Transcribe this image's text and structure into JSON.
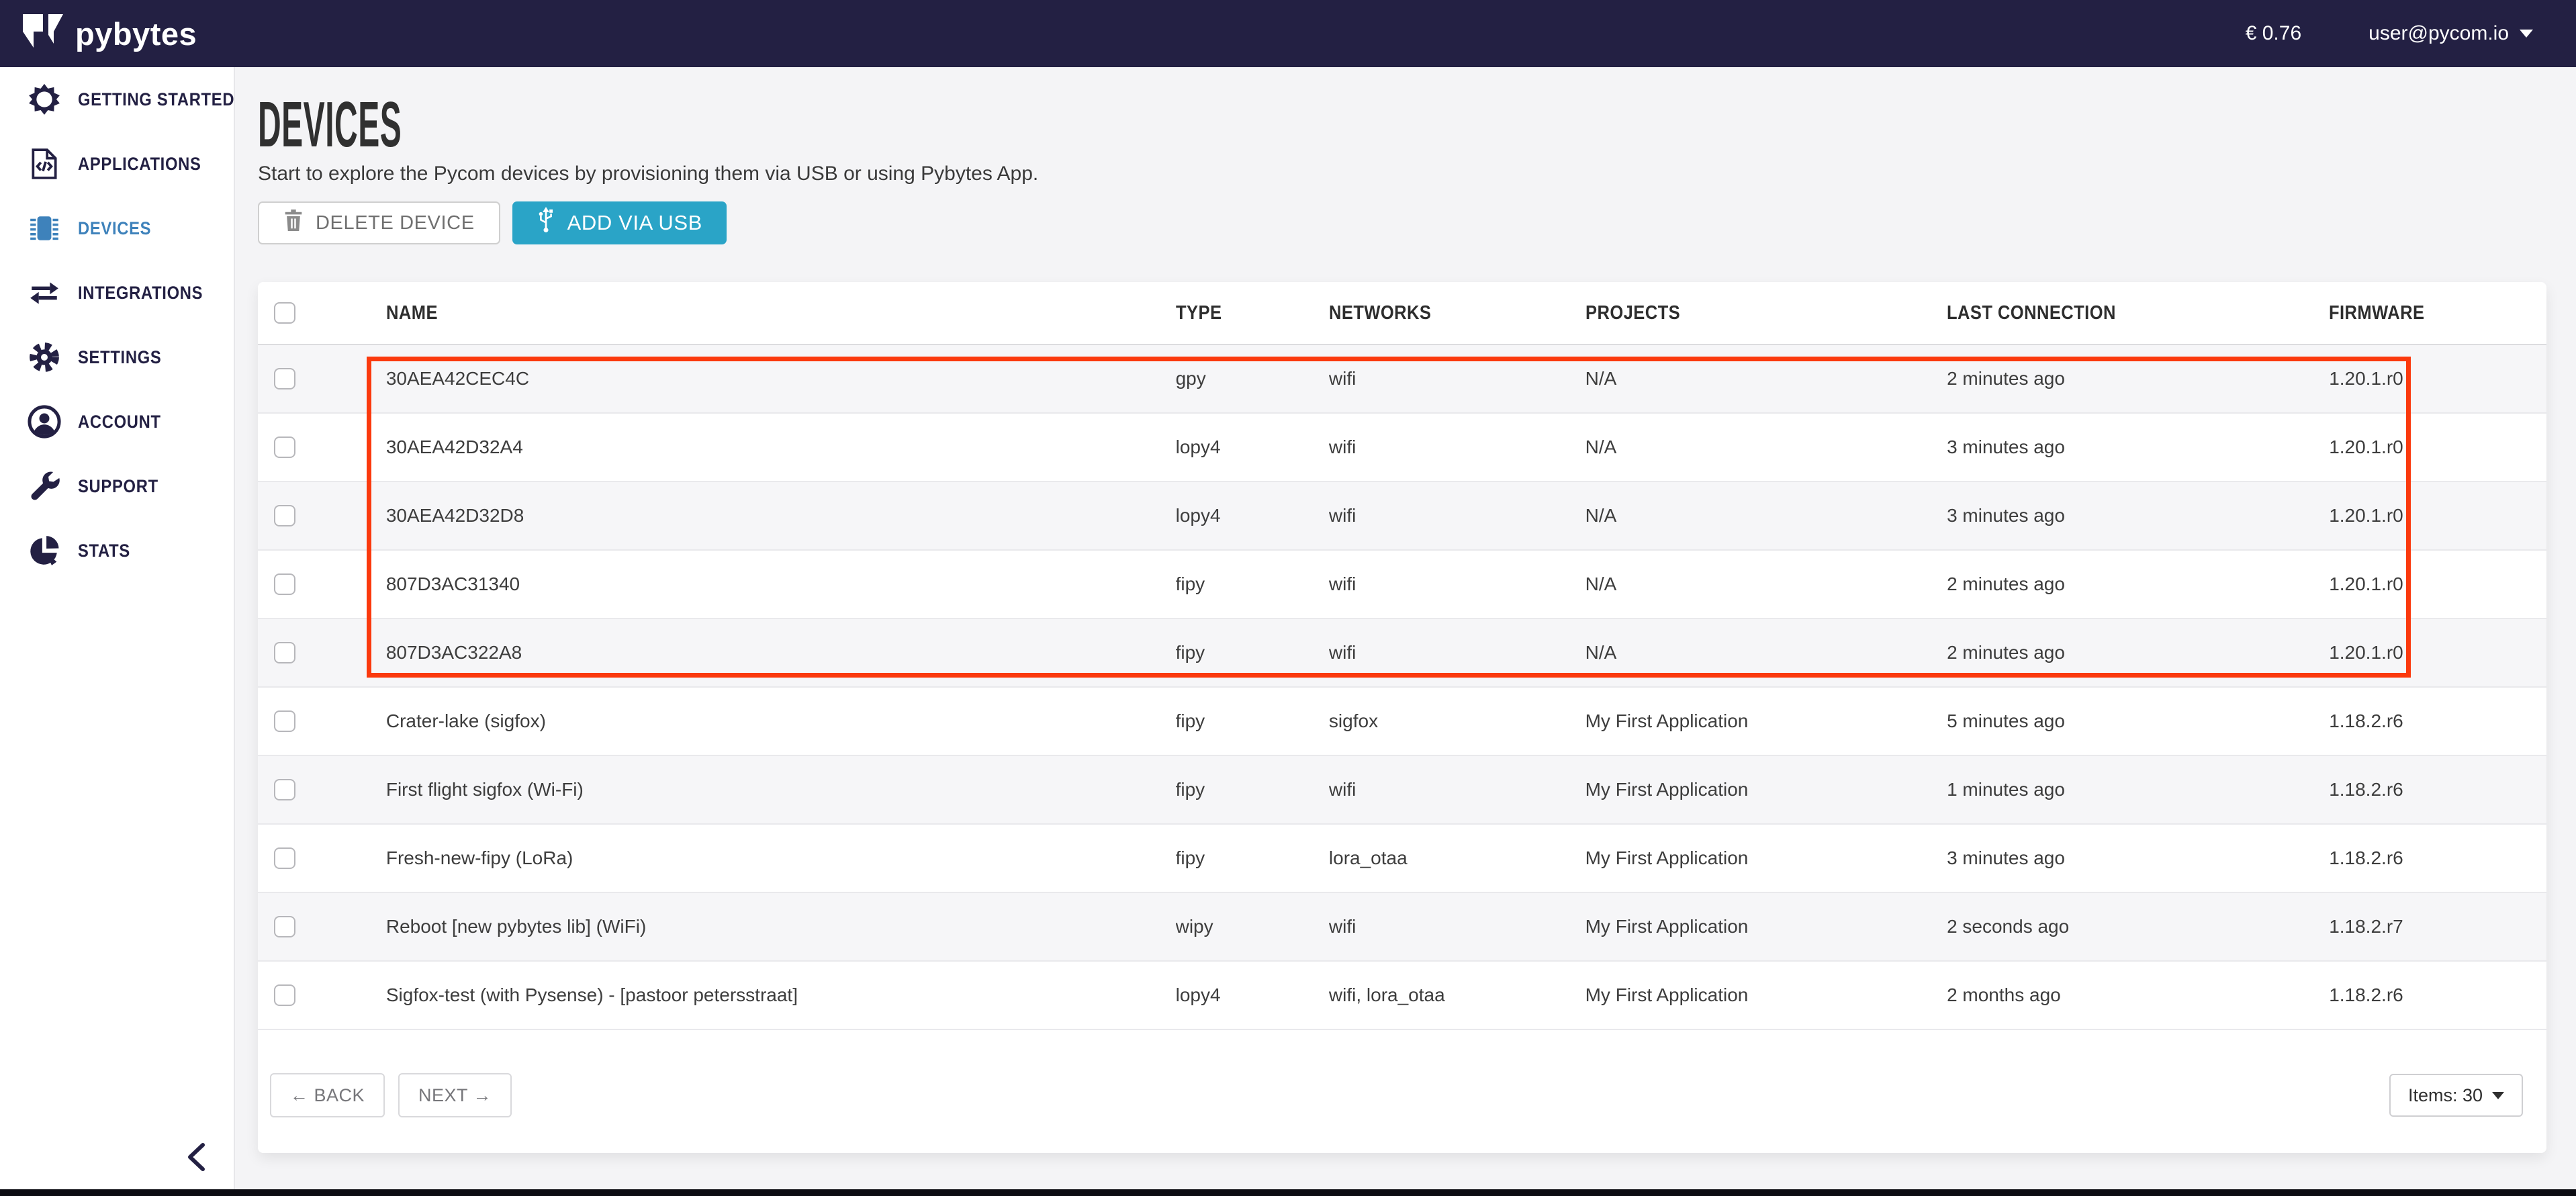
{
  "topbar": {
    "logo_text": "pybytes",
    "balance": "€ 0.76",
    "user_email": "user@pycom.io"
  },
  "sidebar": {
    "items": [
      {
        "label": "GETTING STARTED",
        "icon": "sun-icon",
        "active": false
      },
      {
        "label": "APPLICATIONS",
        "icon": "code-file-icon",
        "active": false
      },
      {
        "label": "DEVICES",
        "icon": "chip-icon",
        "active": true
      },
      {
        "label": "INTEGRATIONS",
        "icon": "transfer-arrows-icon",
        "active": false
      },
      {
        "label": "SETTINGS",
        "icon": "gear-icon",
        "active": false
      },
      {
        "label": "ACCOUNT",
        "icon": "user-icon",
        "active": false
      },
      {
        "label": "SUPPORT",
        "icon": "wrench-icon",
        "active": false
      },
      {
        "label": "STATS",
        "icon": "pie-chart-icon",
        "active": false
      }
    ]
  },
  "page": {
    "title": "DEVICES",
    "subtitle": "Start to explore the Pycom devices by provisioning them via USB or using Pybytes App."
  },
  "toolbar": {
    "delete_button": "DELETE DEVICE",
    "add_button": "ADD VIA USB"
  },
  "table": {
    "headers": {
      "name": "NAME",
      "type": "TYPE",
      "networks": "NETWORKS",
      "projects": "PROJECTS",
      "last_connection": "LAST CONNECTION",
      "firmware": "FIRMWARE"
    },
    "rows": [
      {
        "name": "30AEA42CEC4C",
        "type": "gpy",
        "networks": "wifi",
        "projects": "N/A",
        "last_connection": "2 minutes ago",
        "firmware": "1.20.1.r0",
        "highlighted": true
      },
      {
        "name": "30AEA42D32A4",
        "type": "lopy4",
        "networks": "wifi",
        "projects": "N/A",
        "last_connection": "3 minutes ago",
        "firmware": "1.20.1.r0",
        "highlighted": true
      },
      {
        "name": "30AEA42D32D8",
        "type": "lopy4",
        "networks": "wifi",
        "projects": "N/A",
        "last_connection": "3 minutes ago",
        "firmware": "1.20.1.r0",
        "highlighted": true
      },
      {
        "name": "807D3AC31340",
        "type": "fipy",
        "networks": "wifi",
        "projects": "N/A",
        "last_connection": "2 minutes ago",
        "firmware": "1.20.1.r0",
        "highlighted": true
      },
      {
        "name": "807D3AC322A8",
        "type": "fipy",
        "networks": "wifi",
        "projects": "N/A",
        "last_connection": "2 minutes ago",
        "firmware": "1.20.1.r0",
        "highlighted": true
      },
      {
        "name": "Crater-lake (sigfox)",
        "type": "fipy",
        "networks": "sigfox",
        "projects": "My First Application",
        "last_connection": "5 minutes ago",
        "firmware": "1.18.2.r6",
        "highlighted": false
      },
      {
        "name": "First flight sigfox (Wi-Fi)",
        "type": "fipy",
        "networks": "wifi",
        "projects": "My First Application",
        "last_connection": "1 minutes ago",
        "firmware": "1.18.2.r6",
        "highlighted": false
      },
      {
        "name": "Fresh-new-fipy (LoRa)",
        "type": "fipy",
        "networks": "lora_otaa",
        "projects": "My First Application",
        "last_connection": "3 minutes ago",
        "firmware": "1.18.2.r6",
        "highlighted": false
      },
      {
        "name": "Reboot [new pybytes lib] (WiFi)",
        "type": "wipy",
        "networks": "wifi",
        "projects": "My First Application",
        "last_connection": "2 seconds ago",
        "firmware": "1.18.2.r7",
        "highlighted": false
      },
      {
        "name": "Sigfox-test (with Pysense) - [pastoor petersstraat]",
        "type": "lopy4",
        "networks": "wifi, lora_otaa",
        "projects": "My First Application",
        "last_connection": "2 months ago",
        "firmware": "1.18.2.r6",
        "highlighted": false
      }
    ]
  },
  "pagination": {
    "back_label": "← BACK",
    "next_label": "NEXT →",
    "items_label": "Items: 30"
  },
  "colors": {
    "topbar_bg": "#232043",
    "active_item": "#3e82bb",
    "add_button_bg": "#2aa4c7",
    "highlight_border": "#fb390d"
  }
}
